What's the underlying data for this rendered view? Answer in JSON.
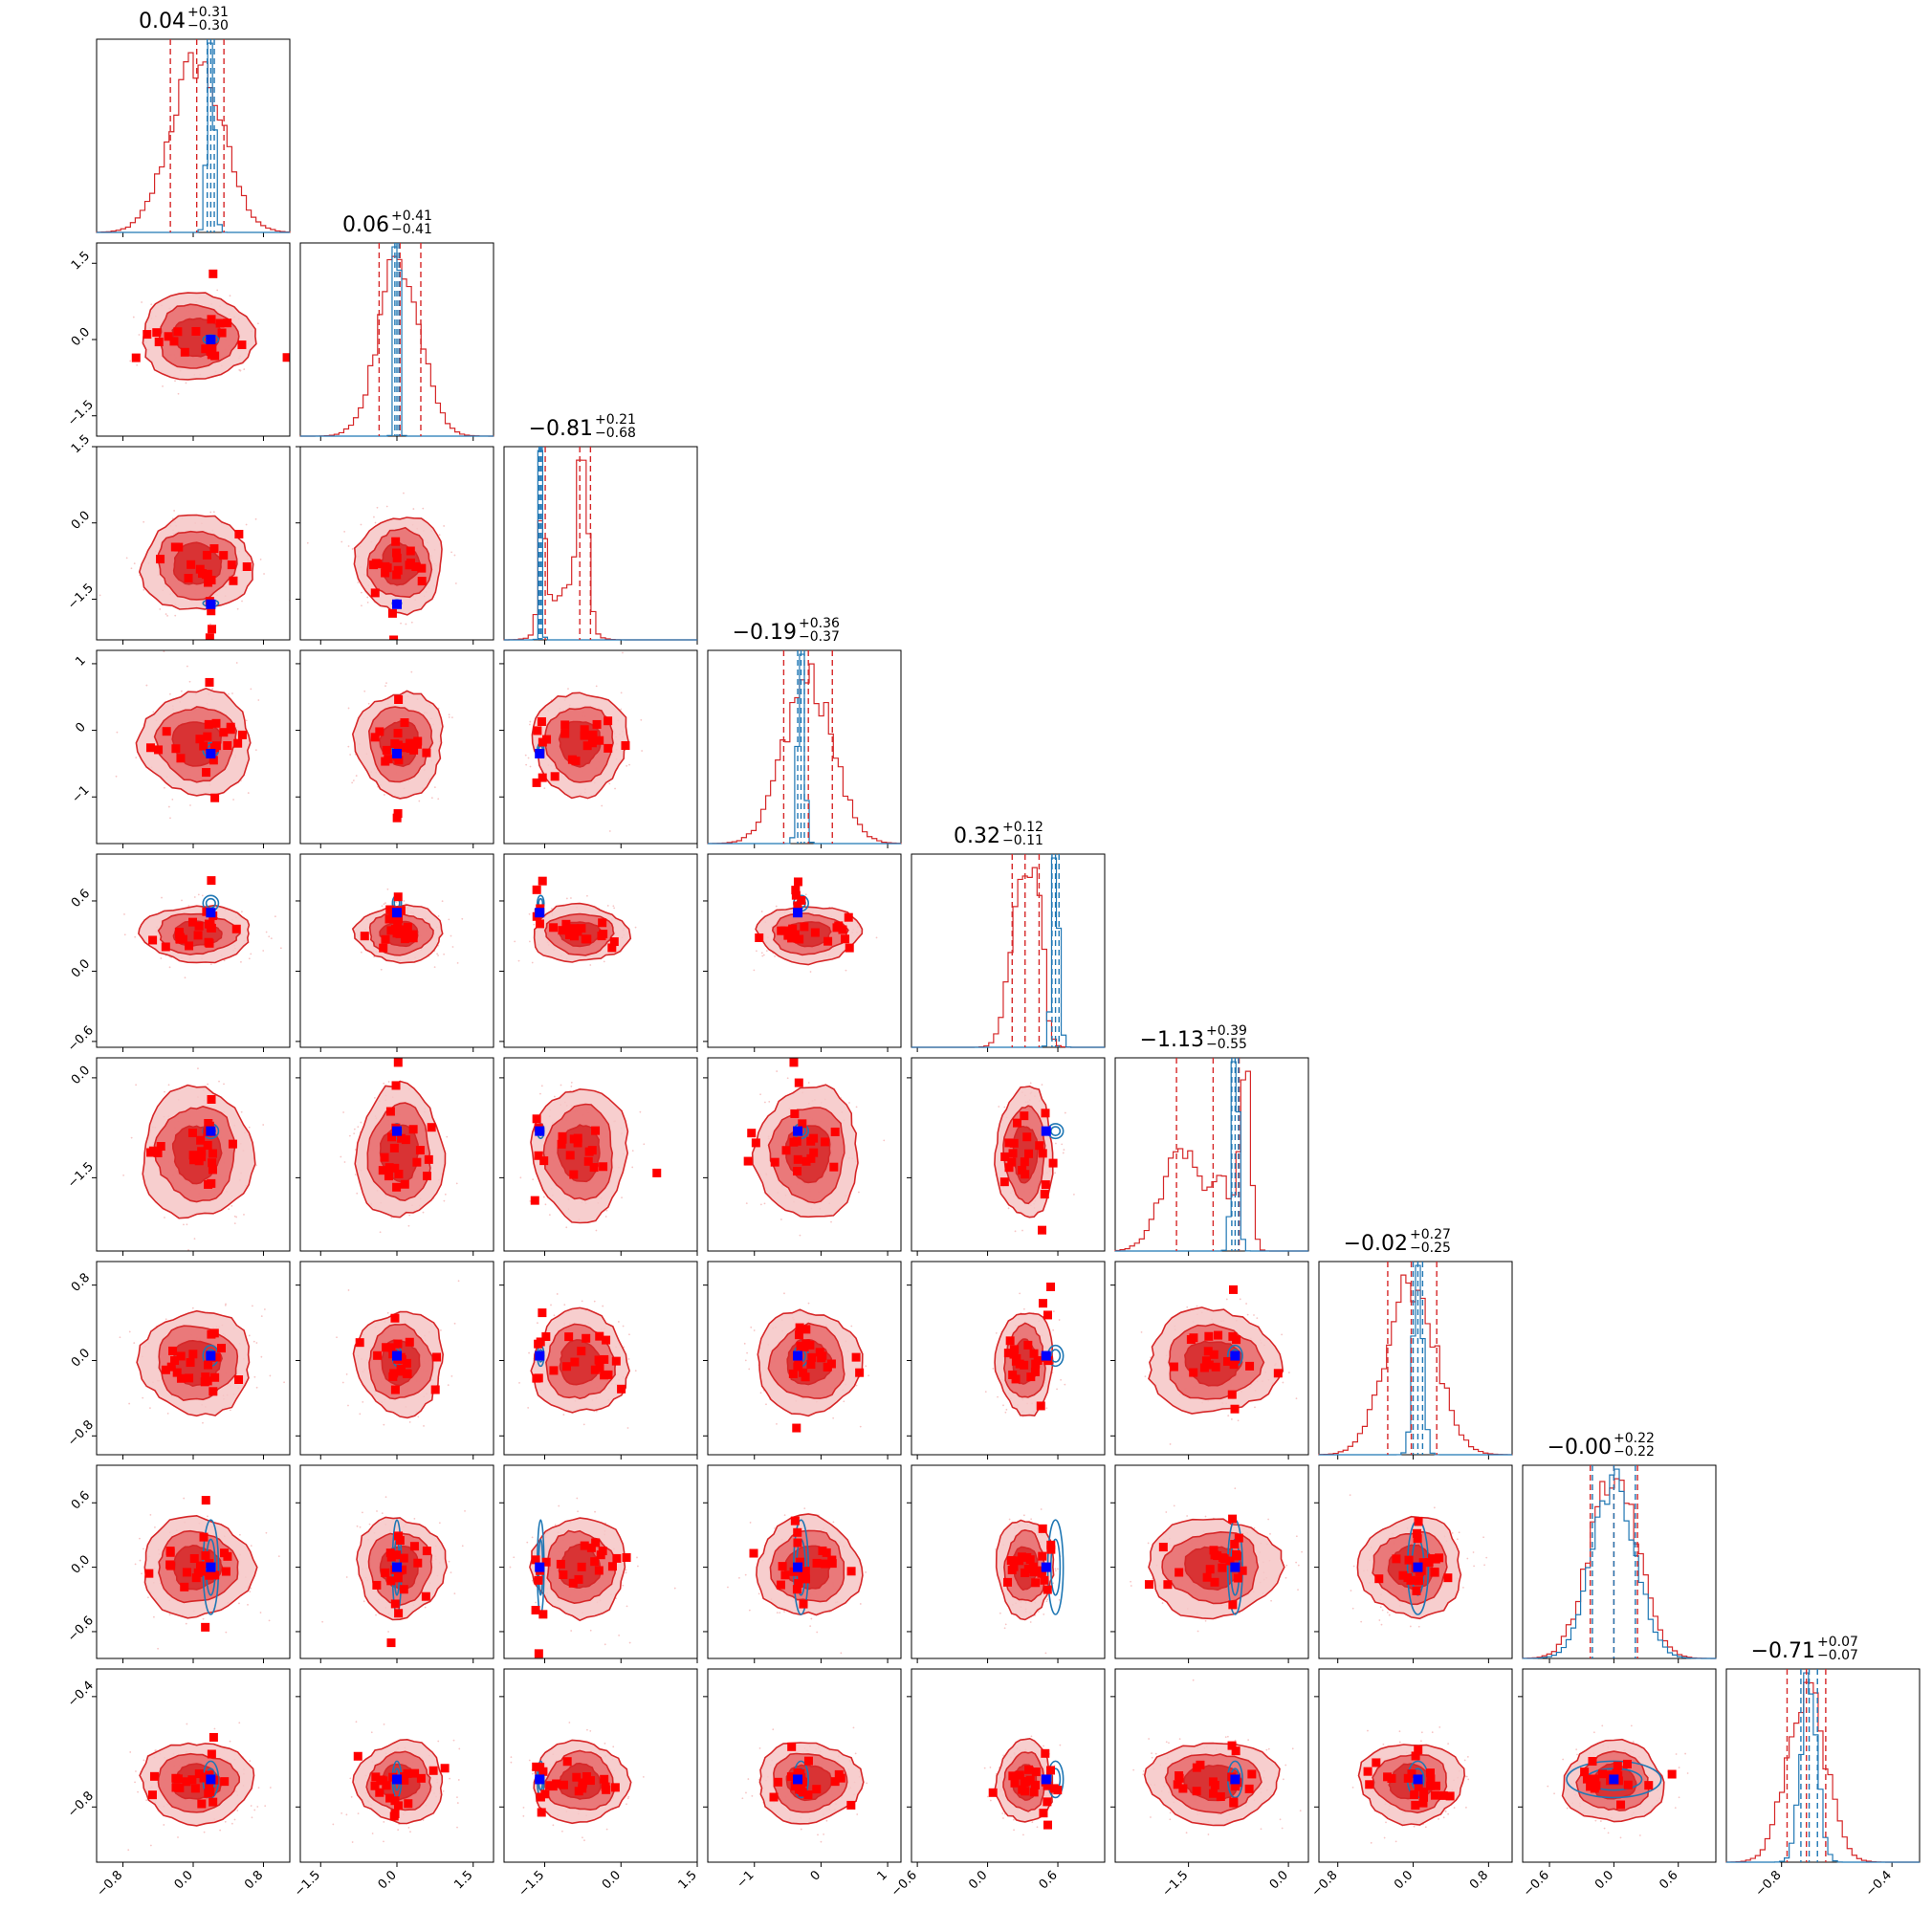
{
  "chart_data": {
    "type": "corner",
    "parameters": 9,
    "colors": {
      "posterior_a": "#d62728",
      "posterior_b": "#1f77b4",
      "fill_dark": "#d62728",
      "fill_mid": "#e86a6b",
      "fill_light": "#f6c5c5",
      "samples": "#ff0000",
      "truth_marker": "#0000ff"
    },
    "titles": [
      {
        "median": "0.04",
        "plus": "+0.31",
        "minus": "−0.30"
      },
      {
        "median": "0.06",
        "plus": "+0.41",
        "minus": "−0.41"
      },
      {
        "median": "−0.81",
        "plus": "+0.21",
        "minus": "−0.68"
      },
      {
        "median": "−0.19",
        "plus": "+0.36",
        "minus": "−0.37"
      },
      {
        "median": "0.32",
        "plus": "+0.12",
        "minus": "−0.11"
      },
      {
        "median": "−1.13",
        "plus": "+0.39",
        "minus": "−0.55"
      },
      {
        "median": "−0.02",
        "plus": "+0.27",
        "minus": "−0.25"
      },
      {
        "median": "−0.00",
        "plus": "+0.22",
        "minus": "−0.22"
      },
      {
        "median": "−0.71",
        "plus": "+0.07",
        "minus": "−0.07"
      }
    ],
    "ranges": [
      [
        -1.1,
        1.1
      ],
      [
        -1.9,
        1.9
      ],
      [
        -2.3,
        1.5
      ],
      [
        -1.7,
        1.2
      ],
      [
        -0.65,
        1.0
      ],
      [
        -2.6,
        0.3
      ],
      [
        -1.0,
        1.05
      ],
      [
        -0.85,
        0.95
      ],
      [
        -1.0,
        -0.3
      ]
    ],
    "ticks": [
      [
        -0.8,
        0.0,
        0.8
      ],
      [
        -1.5,
        0.0,
        1.5
      ],
      [
        -1.5,
        0.0,
        1.5
      ],
      [
        -1,
        0,
        1
      ],
      [
        -0.6,
        0.0,
        0.6
      ],
      [
        -1.5,
        0.0
      ],
      [
        -0.8,
        0.0,
        0.8
      ],
      [
        -0.6,
        0.0,
        0.6
      ],
      [
        -0.8,
        -0.4
      ]
    ],
    "tick_labels": [
      [
        "−0.8",
        "0.0",
        "0.8"
      ],
      [
        "−1.5",
        "0.0",
        "1.5"
      ],
      [
        "−1.5",
        "0.0",
        "1.5"
      ],
      [
        "−1",
        "0",
        "1"
      ],
      [
        "−0.6",
        "0.0",
        "0.6"
      ],
      [
        "−1.5",
        "0.0"
      ],
      [
        "−0.8",
        "0.0",
        "0.8"
      ],
      [
        "−0.6",
        "0.0",
        "0.6"
      ],
      [
        "−0.8",
        "−0.4"
      ]
    ],
    "truth": [
      0.2,
      0.0,
      -1.6,
      -0.35,
      0.5,
      -0.8,
      0.05,
      0.0,
      -0.7
    ],
    "posterior_a_1d": [
      {
        "center": 0.04,
        "sigma": 0.3,
        "q16": -0.26,
        "q50": 0.04,
        "q84": 0.35
      },
      {
        "center": 0.06,
        "sigma": 0.41,
        "q16": -0.35,
        "q50": 0.06,
        "q84": 0.47
      },
      {
        "modes": [
          {
            "center": -1.55,
            "sigma": 0.07,
            "weight": 1.0
          },
          {
            "center": -0.75,
            "sigma": 0.1,
            "weight": 1.5
          },
          {
            "center": -1.1,
            "sigma": 0.3,
            "weight": 0.4
          }
        ],
        "q16": -1.49,
        "q50": -0.81,
        "q84": -0.6
      },
      {
        "center": -0.19,
        "sigma": 0.37,
        "q16": -0.56,
        "q50": -0.19,
        "q84": 0.17
      },
      {
        "modes": [
          {
            "center": 0.3,
            "sigma": 0.1,
            "weight": 1.0
          },
          {
            "center": 0.43,
            "sigma": 0.05,
            "weight": 0.6
          }
        ],
        "q16": 0.21,
        "q50": 0.32,
        "q84": 0.44
      },
      {
        "modes": [
          {
            "center": -0.65,
            "sigma": 0.08,
            "weight": 1.5
          },
          {
            "center": -1.6,
            "sigma": 0.3,
            "weight": 0.8
          },
          {
            "center": -1.0,
            "sigma": 0.15,
            "weight": 0.5
          }
        ],
        "q16": -1.68,
        "q50": -1.13,
        "q84": -0.74
      },
      {
        "center": -0.02,
        "sigma": 0.26,
        "q16": -0.27,
        "q50": -0.02,
        "q84": 0.25
      },
      {
        "center": -0.0,
        "sigma": 0.22,
        "q16": -0.22,
        "q50": -0.0,
        "q84": 0.22
      },
      {
        "center": -0.71,
        "sigma": 0.07,
        "q16": -0.78,
        "q50": -0.71,
        "q84": -0.64
      }
    ],
    "posterior_b_1d": [
      {
        "center": 0.2,
        "sigma": 0.04,
        "q16": 0.16,
        "q50": 0.2,
        "q84": 0.24
      },
      {
        "center": 0.0,
        "sigma": 0.04,
        "q16": -0.04,
        "q50": 0.0,
        "q84": 0.04
      },
      {
        "center": -1.58,
        "sigma": 0.03,
        "q16": -1.61,
        "q50": -1.58,
        "q84": -1.55
      },
      {
        "center": -0.3,
        "sigma": 0.05,
        "q16": -0.35,
        "q50": -0.3,
        "q84": -0.25
      },
      {
        "center": 0.58,
        "sigma": 0.03,
        "q16": 0.55,
        "q50": 0.58,
        "q84": 0.61
      },
      {
        "center": -0.8,
        "sigma": 0.05,
        "q16": -0.85,
        "q50": -0.8,
        "q84": -0.75
      },
      {
        "center": 0.05,
        "sigma": 0.05,
        "q16": 0.0,
        "q50": 0.05,
        "q84": 0.1
      },
      {
        "center": 0.0,
        "sigma": 0.2,
        "q16": -0.2,
        "q50": 0.0,
        "q84": 0.2
      },
      {
        "center": -0.7,
        "sigma": 0.03,
        "q16": -0.73,
        "q50": -0.7,
        "q84": -0.67
      }
    ]
  }
}
